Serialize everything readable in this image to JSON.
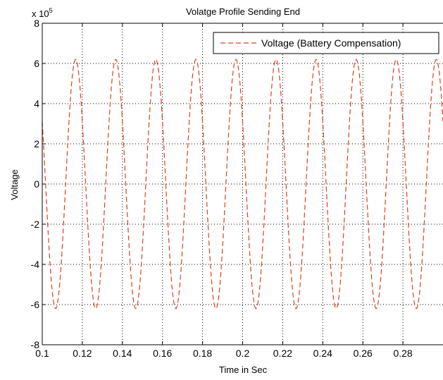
{
  "chart_data": {
    "type": "line",
    "title": "Volatge Profile Sending End",
    "xlabel": "Time in Sec",
    "ylabel": "Voltage",
    "y_exponent_label": {
      "base": "x 10",
      "power": "5"
    },
    "xlim": [
      0.1,
      0.3
    ],
    "ylim": [
      -8,
      8
    ],
    "y_scale_factor": 100000,
    "x_ticks": [
      0.1,
      0.12,
      0.14,
      0.16,
      0.18,
      0.2,
      0.22,
      0.24,
      0.26,
      0.28
    ],
    "x_tick_labels": [
      "0.1",
      "0.12",
      "0.14",
      "0.16",
      "0.18",
      "0.2",
      "0.22",
      "0.24",
      "0.26",
      "0.28"
    ],
    "y_ticks": [
      -8,
      -6,
      -4,
      -2,
      0,
      2,
      4,
      6,
      8
    ],
    "y_tick_labels": [
      "-8",
      "-6",
      "-4",
      "-2",
      "0",
      "2",
      "4",
      "6",
      "8"
    ],
    "grid": true,
    "grid_style": "dotted",
    "legend_position": "top-right",
    "series": [
      {
        "name": "Voltage (Battery Compensation)",
        "color": "#d9411f",
        "line_style": "dashed",
        "waveform": "sine",
        "amplitude": 6.2,
        "frequency_hz": 50,
        "phase_deg": 150,
        "x_start": 0.1,
        "x_end": 0.3
      }
    ]
  }
}
